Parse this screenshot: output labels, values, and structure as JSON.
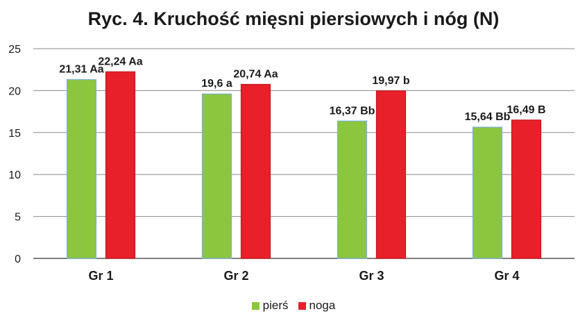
{
  "chart_data": {
    "type": "bar",
    "title": "Ryc. 4. Kruchość mięsni piersiowych i nóg (N)",
    "xlabel": "",
    "ylabel": "",
    "categories": [
      "Gr 1",
      "Gr 2",
      "Gr 3",
      "Gr 4"
    ],
    "ylim": [
      0,
      25
    ],
    "yticks": [
      0,
      5,
      10,
      15,
      20,
      25
    ],
    "grid": true,
    "legend_position": "bottom",
    "series": [
      {
        "name": "pierś",
        "color": "#8cc63f",
        "values": [
          21.31,
          19.6,
          16.37,
          15.64
        ],
        "labels": [
          "21,31 Aa",
          "19,6 a",
          "16,37 Bb",
          "15,64 Bb"
        ]
      },
      {
        "name": "noga",
        "color": "#e8202a",
        "values": [
          22.24,
          20.74,
          19.97,
          16.49
        ],
        "labels": [
          "22,24 Aa",
          "20,74 Aa",
          "19,97 b",
          "16,49 B"
        ]
      }
    ]
  }
}
